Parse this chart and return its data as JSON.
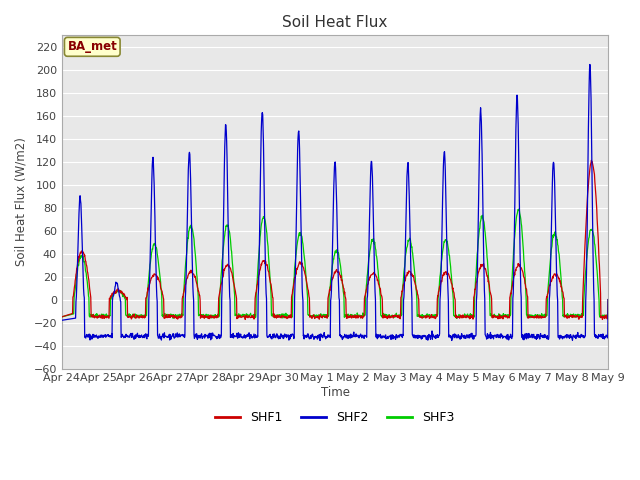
{
  "title": "Soil Heat Flux",
  "ylabel": "Soil Heat Flux (W/m2)",
  "xlabel": "Time",
  "ylim": [
    -60,
    230
  ],
  "yticks": [
    -60,
    -40,
    -20,
    0,
    20,
    40,
    60,
    80,
    100,
    120,
    140,
    160,
    180,
    200,
    220
  ],
  "fig_bg_color": "#ffffff",
  "plot_bg_color": "#e8e8e8",
  "grid_color": "#ffffff",
  "shf1_color": "#cc0000",
  "shf2_color": "#0000cc",
  "shf3_color": "#00cc00",
  "annotation_text": "BA_met",
  "annotation_bg": "#ffffcc",
  "annotation_fg": "#880000",
  "annotation_edge": "#888833",
  "legend_entries": [
    "SHF1",
    "SHF2",
    "SHF3"
  ],
  "tick_labels": [
    "Apr 24",
    "Apr 25",
    "Apr 26",
    "Apr 27",
    "Apr 28",
    "Apr 29",
    "Apr 30",
    "May 1",
    "May 2",
    "May 3",
    "May 4",
    "May 5",
    "May 6",
    "May 7",
    "May 8",
    "May 9"
  ],
  "shf2_peaks": [
    90,
    15,
    122,
    128,
    152,
    165,
    148,
    120,
    120,
    118,
    128,
    165,
    178,
    120,
    205
  ],
  "shf1_peaks": [
    42,
    8,
    22,
    24,
    30,
    34,
    32,
    25,
    23,
    24,
    24,
    30,
    30,
    22,
    120
  ],
  "shf3_peaks": [
    38,
    8,
    48,
    64,
    65,
    72,
    58,
    43,
    52,
    52,
    52,
    72,
    78,
    58,
    62
  ],
  "shf2_night": -32,
  "shf1_night": -15,
  "shf3_night": -14
}
